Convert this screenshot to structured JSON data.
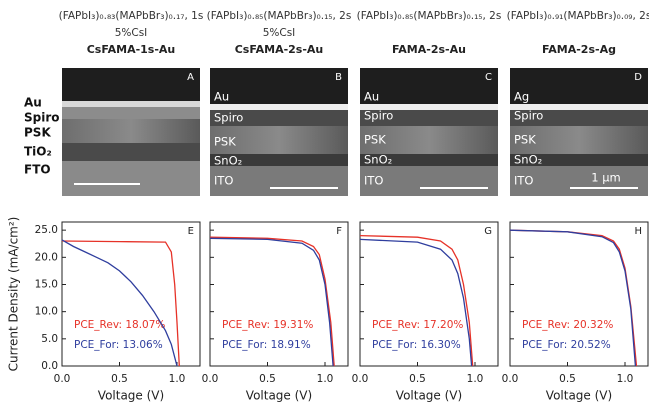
{
  "sem_panels": [
    {
      "header": "(FAPbI₃)₀.₈₃(MAPbBr₃)₀.₁₇, 1s",
      "subheader": "5%CsI",
      "name": "CsFAMA-1s-Au",
      "letter": "A",
      "layers": [
        "Au",
        "Spiro",
        "PSK",
        "TiO₂",
        "FTO"
      ]
    },
    {
      "header": "(FAPbI₃)₀.₈₅(MAPbBr₃)₀.₁₅, 2s",
      "subheader": "5%CsI",
      "name": "CsFAMA-2s-Au",
      "letter": "B",
      "layers": [
        "Au",
        "Spiro",
        "PSK",
        "SnO₂",
        "ITO"
      ]
    },
    {
      "header": "(FAPbI₃)₀.₈₅(MAPbBr₃)₀.₁₅, 2s",
      "name": "FAMA-2s-Au",
      "letter": "C",
      "layers": [
        "Au",
        "Spiro",
        "PSK",
        "SnO₂",
        "ITO"
      ]
    },
    {
      "header": "(FAPbI₃)₀.₉₁(MAPbBr₃)₀.₀₉, 2s",
      "name": "FAMA-2s-Ag",
      "letter": "D",
      "layers": [
        "Ag",
        "Spiro",
        "PSK",
        "SnO₂",
        "ITO"
      ],
      "scale_bar": "1 µm"
    }
  ],
  "chart_data": [
    {
      "type": "line",
      "panel_label": "E",
      "xlabel": "Voltage (V)",
      "ylabel": "Current Density (mA/cm²)",
      "xlim": [
        0,
        1.2
      ],
      "ylim": [
        0,
        26.5
      ],
      "xticks": [
        {
          "value": 0,
          "label": "0.0"
        },
        {
          "value": 0.5,
          "label": "0.5"
        },
        {
          "value": 1,
          "label": "1.0"
        }
      ],
      "yticks": [
        {
          "value": 0,
          "label": "0.0"
        },
        {
          "value": 5,
          "label": "5.0"
        },
        {
          "value": 10,
          "label": "10.0"
        },
        {
          "value": 15,
          "label": "15.0"
        },
        {
          "value": 20,
          "label": "20.0"
        },
        {
          "value": 25,
          "label": "25.0"
        }
      ],
      "series": [
        {
          "name": "PCE_Rev: 18.07%",
          "color": "#e63228",
          "x": [
            0,
            0.5,
            0.9,
            0.95,
            0.98,
            1.0,
            1.02
          ],
          "values": [
            23,
            22.9,
            22.8,
            21,
            15,
            8,
            0
          ]
        },
        {
          "name": "PCE_For: 13.06%",
          "color": "#2f3e9e",
          "x": [
            0,
            0.1,
            0.2,
            0.3,
            0.4,
            0.5,
            0.6,
            0.7,
            0.8,
            0.9,
            0.95,
            1.0
          ],
          "values": [
            23.2,
            22,
            21,
            20,
            19,
            17.5,
            15.5,
            13,
            10,
            6.5,
            4,
            0
          ]
        }
      ]
    },
    {
      "type": "line",
      "panel_label": "F",
      "xlabel": "Voltage (V)",
      "xlim": [
        0,
        1.2
      ],
      "ylim": [
        0,
        26.5
      ],
      "xticks": [
        {
          "value": 0,
          "label": "0.0"
        },
        {
          "value": 0.5,
          "label": "0.5"
        },
        {
          "value": 1,
          "label": "1.0"
        }
      ],
      "yticks": [
        0,
        5,
        10,
        15,
        20,
        25
      ],
      "series": [
        {
          "name": "PCE_Rev: 19.31%",
          "color": "#e63228",
          "x": [
            0,
            0.5,
            0.8,
            0.9,
            0.95,
            1.0,
            1.05,
            1.08
          ],
          "values": [
            23.7,
            23.5,
            23,
            22,
            20.5,
            16,
            8,
            0
          ]
        },
        {
          "name": "PCE_For: 18.91%",
          "color": "#2f3e9e",
          "x": [
            0,
            0.5,
            0.8,
            0.9,
            0.95,
            1.0,
            1.04,
            1.07
          ],
          "values": [
            23.5,
            23.3,
            22.6,
            21.3,
            19.5,
            15,
            8,
            0
          ]
        }
      ]
    },
    {
      "type": "line",
      "panel_label": "G",
      "xlabel": "Voltage (V)",
      "xlim": [
        0,
        1.2
      ],
      "ylim": [
        0,
        26.5
      ],
      "xticks": [
        {
          "value": 0,
          "label": "0.0"
        },
        {
          "value": 0.5,
          "label": "0.5"
        },
        {
          "value": 1,
          "label": "1.0"
        }
      ],
      "yticks": [
        0,
        5,
        10,
        15,
        20,
        25
      ],
      "series": [
        {
          "name": "PCE_Rev: 17.20%",
          "color": "#e63228",
          "x": [
            0,
            0.5,
            0.7,
            0.8,
            0.85,
            0.9,
            0.95,
            0.98
          ],
          "values": [
            24,
            23.7,
            23,
            21.5,
            19.5,
            15,
            8,
            0
          ]
        },
        {
          "name": "PCE_For: 16.30%",
          "color": "#2f3e9e",
          "x": [
            0,
            0.5,
            0.7,
            0.8,
            0.85,
            0.9,
            0.95,
            0.97
          ],
          "values": [
            23.3,
            22.8,
            21.5,
            19.5,
            17,
            12.5,
            5,
            0
          ]
        }
      ]
    },
    {
      "type": "line",
      "panel_label": "H",
      "xlabel": "Voltage (V)",
      "xlim": [
        0,
        1.2
      ],
      "ylim": [
        0,
        26.5
      ],
      "xticks": [
        {
          "value": 0,
          "label": "0.0"
        },
        {
          "value": 0.5,
          "label": "0.5"
        },
        {
          "value": 1,
          "label": "1.0"
        }
      ],
      "yticks": [
        0,
        5,
        10,
        15,
        20,
        25
      ],
      "series": [
        {
          "name": "PCE_Rev: 20.32%",
          "color": "#e63228",
          "x": [
            0,
            0.5,
            0.8,
            0.9,
            0.95,
            1.0,
            1.05,
            1.1
          ],
          "values": [
            25,
            24.7,
            24,
            23,
            21.5,
            18,
            11,
            0
          ]
        },
        {
          "name": "PCE_For: 20.52%",
          "color": "#2f3e9e",
          "x": [
            0,
            0.5,
            0.8,
            0.9,
            0.95,
            1.0,
            1.05,
            1.09
          ],
          "values": [
            25,
            24.7,
            23.8,
            22.7,
            21,
            17.5,
            10.5,
            0
          ]
        }
      ]
    }
  ]
}
